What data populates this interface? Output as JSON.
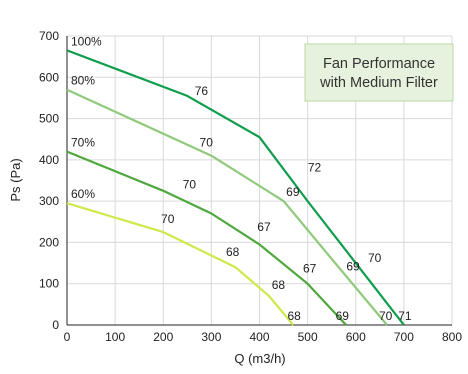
{
  "chart_data": {
    "type": "line",
    "title_lines": [
      "Fan Performance",
      "with Medium Filter"
    ],
    "xlabel": "Q (m3/h)",
    "ylabel": "Ps (Pa)",
    "xlim": [
      0,
      800
    ],
    "ylim": [
      0,
      700
    ],
    "x_ticks": [
      0,
      100,
      200,
      300,
      400,
      500,
      600,
      700,
      800
    ],
    "y_ticks": [
      0,
      100,
      200,
      300,
      400,
      500,
      600,
      700
    ],
    "grid": true,
    "legend": "top-right",
    "series": [
      {
        "name": "100%",
        "color": "#0f9d4c",
        "x": [
          0,
          250,
          400,
          500,
          700
        ],
        "y": [
          665,
          555,
          455,
          300,
          0
        ],
        "point_labels": [
          {
            "x": 255,
            "y": 545,
            "text": "76"
          },
          {
            "x": 490,
            "y": 360,
            "text": "72"
          },
          {
            "x": 615,
            "y": 140,
            "text": "70"
          },
          {
            "x": 700,
            "y": 0,
            "text": "71"
          }
        ]
      },
      {
        "name": "80%",
        "color": "#8fc97a",
        "x": [
          0,
          300,
          450,
          550,
          665
        ],
        "y": [
          570,
          410,
          300,
          160,
          0
        ],
        "point_labels": [
          {
            "x": 265,
            "y": 420,
            "text": "70"
          },
          {
            "x": 445,
            "y": 300,
            "text": "69"
          },
          {
            "x": 570,
            "y": 120,
            "text": "69"
          },
          {
            "x": 660,
            "y": 0,
            "text": "70"
          }
        ]
      },
      {
        "name": "70%",
        "color": "#4ea83d",
        "x": [
          0,
          200,
          300,
          400,
          500,
          580
        ],
        "y": [
          420,
          325,
          270,
          195,
          100,
          0
        ],
        "point_labels": [
          {
            "x": 230,
            "y": 318,
            "text": "70"
          },
          {
            "x": 385,
            "y": 215,
            "text": "67"
          },
          {
            "x": 480,
            "y": 115,
            "text": "67"
          },
          {
            "x": 570,
            "y": 0,
            "text": "69"
          }
        ]
      },
      {
        "name": "60%",
        "color": "#cfe84a",
        "x": [
          0,
          200,
          350,
          420,
          470
        ],
        "y": [
          295,
          225,
          140,
          70,
          0
        ],
        "point_labels": [
          {
            "x": 185,
            "y": 235,
            "text": "70"
          },
          {
            "x": 320,
            "y": 155,
            "text": "68"
          },
          {
            "x": 415,
            "y": 75,
            "text": "68"
          },
          {
            "x": 470,
            "y": 0,
            "text": "68"
          }
        ]
      }
    ]
  },
  "colors": {
    "title_box_fill": "#e6f2dd",
    "title_box_border": "#b9d8a4",
    "grid": "#d9d9d9",
    "axis": "#222222"
  }
}
